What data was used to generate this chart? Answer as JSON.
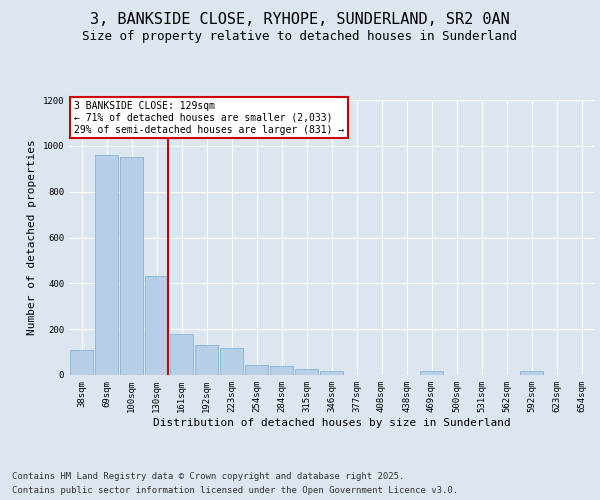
{
  "title_line1": "3, BANKSIDE CLOSE, RYHOPE, SUNDERLAND, SR2 0AN",
  "title_line2": "Size of property relative to detached houses in Sunderland",
  "xlabel": "Distribution of detached houses by size in Sunderland",
  "ylabel": "Number of detached properties",
  "categories": [
    "38sqm",
    "69sqm",
    "100sqm",
    "130sqm",
    "161sqm",
    "192sqm",
    "223sqm",
    "254sqm",
    "284sqm",
    "315sqm",
    "346sqm",
    "377sqm",
    "408sqm",
    "438sqm",
    "469sqm",
    "500sqm",
    "531sqm",
    "562sqm",
    "592sqm",
    "623sqm",
    "654sqm"
  ],
  "values": [
    110,
    960,
    950,
    430,
    180,
    130,
    120,
    45,
    40,
    25,
    18,
    0,
    0,
    0,
    18,
    0,
    0,
    0,
    18,
    0,
    0
  ],
  "bar_color": "#b8cfe8",
  "bar_edge_color": "#7aaad4",
  "vline_x_idx": 3,
  "vline_color": "#cc0000",
  "annotation_text": "3 BANKSIDE CLOSE: 129sqm\n← 71% of detached houses are smaller (2,033)\n29% of semi-detached houses are larger (831) →",
  "annotation_box_color": "#cc0000",
  "annotation_text_color": "#000000",
  "ylim": [
    0,
    1200
  ],
  "yticks": [
    0,
    200,
    400,
    600,
    800,
    1000,
    1200
  ],
  "background_color": "#dce6f0",
  "plot_bg_color": "#dce6f0",
  "footer_line1": "Contains HM Land Registry data © Crown copyright and database right 2025.",
  "footer_line2": "Contains public sector information licensed under the Open Government Licence v3.0.",
  "title_fontsize": 11,
  "subtitle_fontsize": 9,
  "tick_fontsize": 6.5,
  "label_fontsize": 8,
  "footer_fontsize": 6.5,
  "annot_fontsize": 7
}
